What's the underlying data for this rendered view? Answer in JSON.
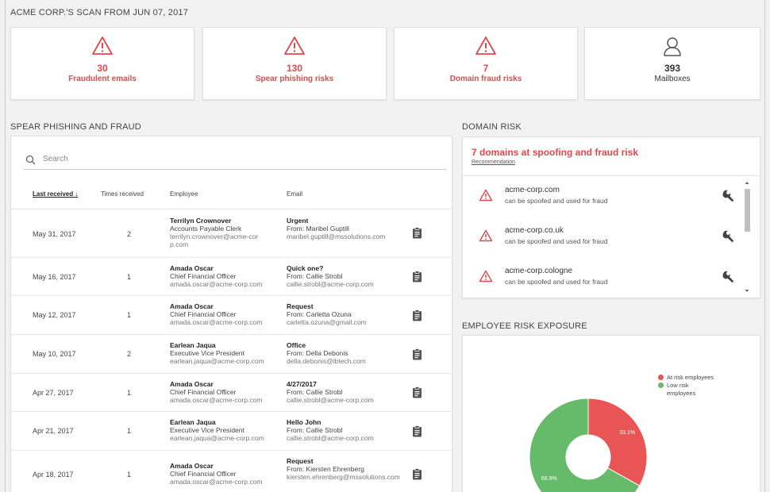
{
  "page_title": "ACME CORP.'S SCAN FROM JUN 07, 2017",
  "cards": [
    {
      "value": "30",
      "label": "Fraudulent emails",
      "icon": "warning-icon"
    },
    {
      "value": "130",
      "label": "Spear phishing risks",
      "icon": "warning-icon"
    },
    {
      "value": "7",
      "label": "Domain fraud risks",
      "icon": "warning-icon"
    },
    {
      "value": "393",
      "label": "Mailboxes",
      "icon": "user-icon"
    }
  ],
  "spear": {
    "title": "SPEAR PHISHING AND FRAUD",
    "search_placeholder": "Search",
    "columns": {
      "last_received": "Last received ↓",
      "times": "Times received",
      "employee": "Employee",
      "email": "Email"
    },
    "rows": [
      {
        "date": "May 31, 2017",
        "times": "2",
        "emp_name": "Terrilyn Crownover",
        "emp_title": "Accounts Payable Clerk",
        "emp_email": "terrilyn.crownover@acme-corp.com",
        "subject": "Urgent",
        "from": "From: Maribel Guptill",
        "from_email": "maribel.guptill@mssolutions.com"
      },
      {
        "date": "May 16, 2017",
        "times": "1",
        "emp_name": "Amada Oscar",
        "emp_title": "Chief Financial Officer",
        "emp_email": "amada.oscar@acme-corp.com",
        "subject": "Quick one?",
        "from": "From: Callie Strobl",
        "from_email": "callie.strobl@acme-corp.com"
      },
      {
        "date": "May 12, 2017",
        "times": "1",
        "emp_name": "Amada Oscar",
        "emp_title": "Chief Financial Officer",
        "emp_email": "amada.oscar@acme-corp.com",
        "subject": "Request",
        "from": "From: Carletta Ozuna",
        "from_email": "carletta.ozuna@gmail.com"
      },
      {
        "date": "May 10, 2017",
        "times": "2",
        "emp_name": "Earlean Jaqua",
        "emp_title": "Executive Vice President",
        "emp_email": "earlean.jaqua@acme-corp.com",
        "subject": "Office",
        "from": "From: Della Debonis",
        "from_email": "della.debonis@ibtech.com"
      },
      {
        "date": "Apr 27, 2017",
        "times": "1",
        "emp_name": "Amada Oscar",
        "emp_title": "Chief Financial Officer",
        "emp_email": "amada.oscar@acme-corp.com",
        "subject": "4/27/2017",
        "from": "From: Callie Strobl",
        "from_email": "callie.strobl@acme-corp.com"
      },
      {
        "date": "Apr 21, 2017",
        "times": "1",
        "emp_name": "Earlean Jaqua",
        "emp_title": "Executive Vice President",
        "emp_email": "earlean.jaqua@acme-corp.com",
        "subject": "Hello John",
        "from": "From: Callie Strobl",
        "from_email": "callie.strobl@acme-corp.com"
      },
      {
        "date": "Apr 18, 2017",
        "times": "1",
        "emp_name": "Amada Oscar",
        "emp_title": "Chief Financial Officer",
        "emp_email": "amada.oscar@acme-corp.com",
        "subject": "Request",
        "from": "From: Kiersten Ehrenberg",
        "from_email": "kiersten.ehrenberg@mssolutions.com"
      }
    ]
  },
  "domain": {
    "title": "DOMAIN RISK",
    "headline": "7 domains at spoofing and fraud risk",
    "recommendation": "Recommendation",
    "items": [
      {
        "name": "acme-corp.com",
        "desc": "can be spoofed and used for fraud"
      },
      {
        "name": "acme-corp.co.uk",
        "desc": "can be spoofed and used for fraud"
      },
      {
        "name": "acme-corp.cologne",
        "desc": "can be spoofed and used for fraud"
      }
    ]
  },
  "exposure": {
    "title": "EMPLOYEE RISK EXPOSURE",
    "legend_at_risk": "At risk employees",
    "legend_low_line1": "Low risk",
    "legend_low_line2": "employees"
  },
  "chart_data": {
    "type": "pie",
    "title": "",
    "labels": [
      "At risk employees",
      "Low risk employees"
    ],
    "values": [
      33.1,
      66.9
    ],
    "data_labels": [
      "33.1%",
      "66.9%"
    ],
    "colors": [
      "#e95454",
      "#66bb6a"
    ],
    "legend": "top-right"
  },
  "colors": {
    "accent_red": "#e0484b",
    "pie_red": "#e95454",
    "pie_green": "#66bb6a"
  }
}
